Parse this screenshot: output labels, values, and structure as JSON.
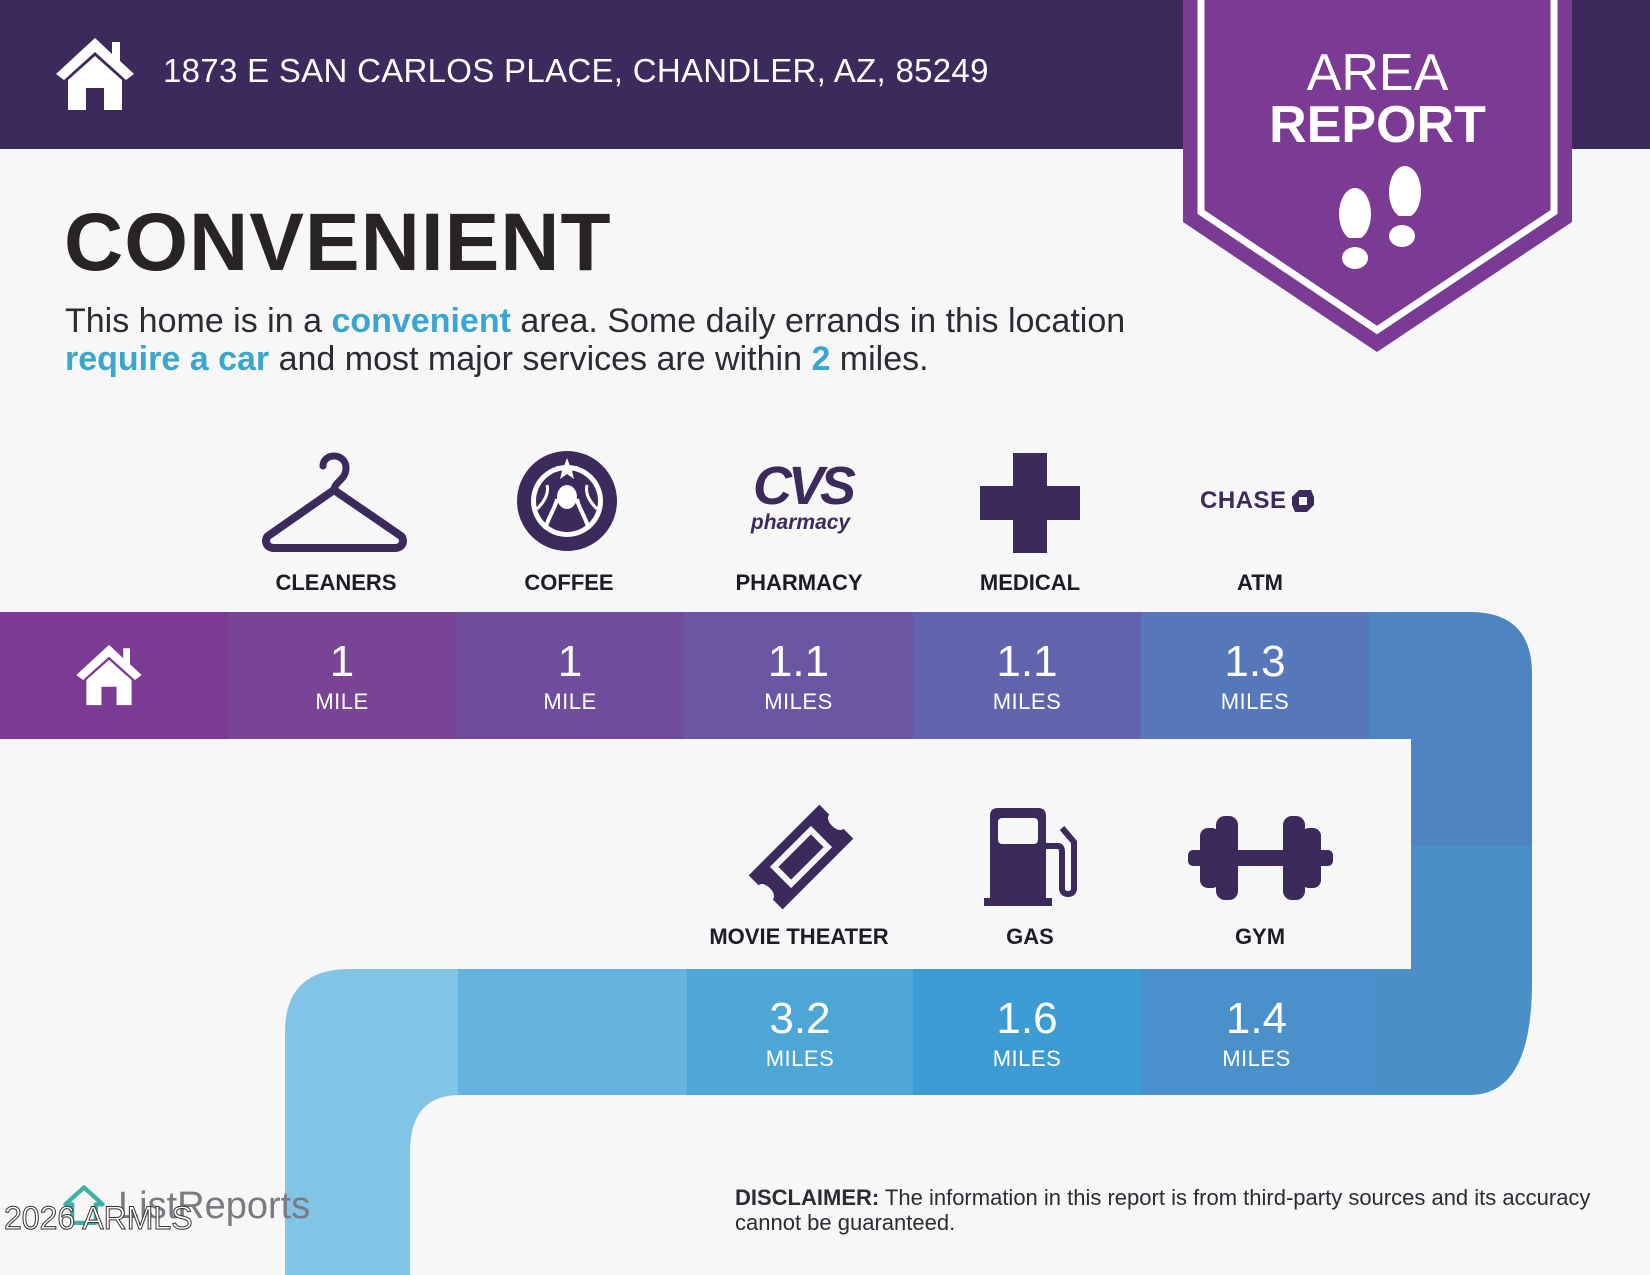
{
  "header": {
    "address": "1873 E SAN CARLOS PLACE, CHANDLER, AZ, 85249",
    "icon": "house-icon"
  },
  "badge": {
    "line1": "AREA",
    "line2": "REPORT",
    "icon": "footprints-icon"
  },
  "title": "CONVENIENT",
  "description": {
    "p1": "This home is in a ",
    "h1": "convenient",
    "p2": " area. Some daily errands in this location ",
    "h2": "require a car",
    "p3": " and most major services are within ",
    "h3": "2",
    "p4": " miles."
  },
  "services_top": [
    {
      "label": "CLEANERS",
      "icon": "hanger-icon",
      "distance": "1",
      "unit": "MILE"
    },
    {
      "label": "COFFEE",
      "icon": "starbucks-logo",
      "distance": "1",
      "unit": "MILE"
    },
    {
      "label": "PHARMACY",
      "icon": "cvs-pharmacy-logo",
      "distance": "1.1",
      "unit": "MILES"
    },
    {
      "label": "MEDICAL",
      "icon": "medical-cross-icon",
      "distance": "1.1",
      "unit": "MILES"
    },
    {
      "label": "ATM",
      "icon": "chase-logo",
      "distance": "1.3",
      "unit": "MILES"
    }
  ],
  "services_bottom": [
    {
      "label": "MOVIE THEATER",
      "icon": "ticket-icon",
      "distance": "3.2",
      "unit": "MILES"
    },
    {
      "label": "GAS",
      "icon": "gas-pump-icon",
      "distance": "1.6",
      "unit": "MILES"
    },
    {
      "label": "GYM",
      "icon": "dumbbell-icon",
      "distance": "1.4",
      "unit": "MILES"
    }
  ],
  "logos_text": {
    "cvs": "CVS",
    "cvs_sub": "pharmacy",
    "chase": "CHASE"
  },
  "disclaimer": {
    "label": "DISCLAIMER:",
    "text": " The information in this report is from third-party sources and its accuracy cannot be guaranteed."
  },
  "brand": "ListReports",
  "copyright": "2026 ARMLS",
  "colors": {
    "header": "#3d2a5c",
    "badge": "#7b3a94",
    "accent": "#3aa6d0",
    "icon": "#3d2a5c"
  }
}
